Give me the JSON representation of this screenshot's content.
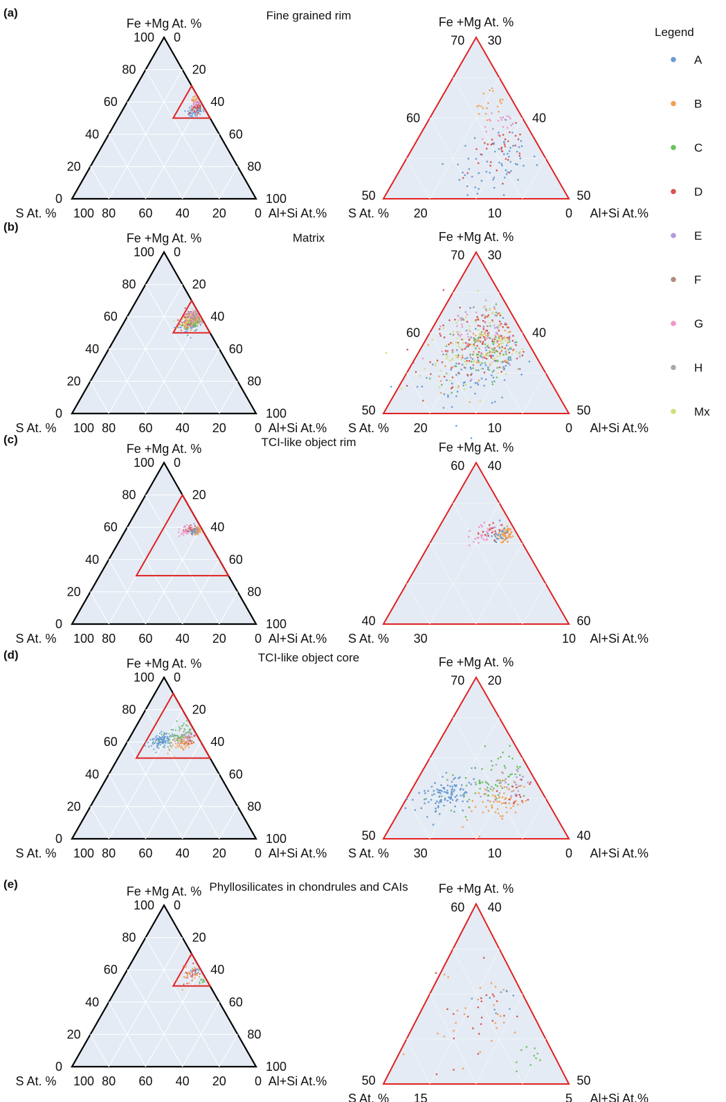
{
  "colors": {
    "A": "#6a9bd1",
    "B": "#f2a055",
    "C": "#6dbf63",
    "D": "#d9534f",
    "E": "#b39bd6",
    "F": "#b08c7e",
    "G": "#f096c8",
    "H": "#a9a9a9",
    "Mx": "#d4de7a",
    "zoom_frame": "#e02020",
    "background": "#e4ebf4"
  },
  "legend": {
    "title": "Legend",
    "items": [
      {
        "key": "A",
        "label": "A"
      },
      {
        "key": "B",
        "label": "B"
      },
      {
        "key": "C",
        "label": "C"
      },
      {
        "key": "D",
        "label": "D"
      },
      {
        "key": "E",
        "label": "E"
      },
      {
        "key": "F",
        "label": "F"
      },
      {
        "key": "G",
        "label": "G"
      },
      {
        "key": "H",
        "label": "H"
      },
      {
        "key": "Mx",
        "label": "Mx"
      }
    ]
  },
  "chart_data": [
    {
      "type": "scatter",
      "subtype": "ternary",
      "panel": "(a)",
      "title": "Fine grained rim",
      "axes": {
        "top": "Fe +Mg At. %",
        "left": "S At. %",
        "right": "Al+Si At.%"
      },
      "ticks": {
        "full": [
          "0",
          "20",
          "40",
          "60",
          "80",
          "100"
        ],
        "zoom_left": [
          "70",
          "60",
          "50"
        ],
        "zoom_right": [
          "30",
          "40",
          "50"
        ],
        "zoom_bottom": [
          "20",
          "10",
          "0"
        ]
      },
      "zoom_region": {
        "top_min": 50,
        "top_max": 70,
        "right_min": 30,
        "right_max": 50,
        "left_max": 20
      },
      "clusters": [
        {
          "series": "A",
          "center": {
            "top": 55,
            "right": 40
          },
          "spread": 2.2,
          "n": 70
        },
        {
          "series": "B",
          "center": {
            "top": 62,
            "right": 36
          },
          "spread": 1.3,
          "n": 35
        },
        {
          "series": "D",
          "center": {
            "top": 56,
            "right": 40
          },
          "spread": 1.8,
          "n": 40
        },
        {
          "series": "G",
          "center": {
            "top": 60,
            "right": 38
          },
          "spread": 1.2,
          "n": 18
        },
        {
          "series": "E",
          "center": {
            "top": 60,
            "right": 39
          },
          "spread": 1.2,
          "n": 12
        }
      ]
    },
    {
      "type": "scatter",
      "subtype": "ternary",
      "panel": "(b)",
      "title": "Matrix",
      "axes": {
        "top": "Fe +Mg At. %",
        "left": "S At. %",
        "right": "Al+Si At.%"
      },
      "ticks": {
        "full": [
          "0",
          "20",
          "40",
          "60",
          "80",
          "100"
        ],
        "zoom_left": [
          "70",
          "60",
          "50"
        ],
        "zoom_right": [
          "30",
          "40",
          "50"
        ],
        "zoom_bottom": [
          "20",
          "10",
          "0"
        ]
      },
      "zoom_region": {
        "top_min": 50,
        "top_max": 70,
        "right_min": 30,
        "right_max": 50,
        "left_max": 20
      },
      "clusters": [
        {
          "series": "A",
          "center": {
            "top": 56,
            "right": 38
          },
          "spread": 2.6,
          "n": 110
        },
        {
          "series": "D",
          "center": {
            "top": 59,
            "right": 36
          },
          "spread": 2.8,
          "n": 150
        },
        {
          "series": "Mx",
          "center": {
            "top": 59,
            "right": 37
          },
          "spread": 2.6,
          "n": 160
        },
        {
          "series": "C",
          "center": {
            "top": 58,
            "right": 37
          },
          "spread": 2.6,
          "n": 60
        },
        {
          "series": "B",
          "center": {
            "top": 59,
            "right": 38
          },
          "spread": 2.6,
          "n": 60
        },
        {
          "series": "G",
          "center": {
            "top": 60,
            "right": 35
          },
          "spread": 2.2,
          "n": 40
        },
        {
          "series": "E",
          "center": {
            "top": 59,
            "right": 37
          },
          "spread": 2.4,
          "n": 30
        },
        {
          "series": "F",
          "center": {
            "top": 60,
            "right": 36
          },
          "spread": 2.2,
          "n": 25
        }
      ]
    },
    {
      "type": "scatter",
      "subtype": "ternary",
      "panel": "(c)",
      "title": "TCI-like object rim",
      "axes": {
        "top": "Fe +Mg At. %",
        "left": "S At. %",
        "right": "Al+Si At.%"
      },
      "ticks": {
        "full": [
          "0",
          "20",
          "40",
          "60",
          "80",
          "100"
        ],
        "zoom_left": [
          "60",
          "40"
        ],
        "zoom_right": [
          "40",
          "60"
        ],
        "zoom_bottom": [
          "30",
          "10"
        ]
      },
      "zoom_region": {
        "top_min": 30,
        "top_max": 80,
        "right_min": 20,
        "right_max": 70,
        "left_max": 50
      },
      "clusters": [
        {
          "series": "B",
          "center": {
            "top": 58,
            "right": 39
          },
          "spread": 1.2,
          "n": 70
        },
        {
          "series": "A",
          "center": {
            "top": 58,
            "right": 37
          },
          "spread": 1.8,
          "n": 25
        },
        {
          "series": "G",
          "center": {
            "top": 58,
            "right": 33
          },
          "spread": 1.6,
          "n": 30
        },
        {
          "series": "D",
          "center": {
            "top": 59,
            "right": 35
          },
          "spread": 1.6,
          "n": 15
        }
      ]
    },
    {
      "type": "scatter",
      "subtype": "ternary",
      "panel": "(d)",
      "title": "TCI-like object core",
      "axes": {
        "top": "Fe +Mg At. %",
        "left": "S At. %",
        "right": "Al+Si At.%"
      },
      "ticks": {
        "full": [
          "0",
          "20",
          "40",
          "60",
          "80",
          "100"
        ],
        "zoom_left": [
          "70",
          "50"
        ],
        "zoom_right": [
          "20",
          "40"
        ],
        "zoom_bottom": [
          "30",
          "10",
          "0"
        ]
      },
      "zoom_region": {
        "top_min": 50,
        "top_max": 90,
        "right_min": 10,
        "right_max": 50,
        "left_max": 40
      },
      "clusters": [
        {
          "series": "A",
          "center": {
            "top": 61,
            "right": 18
          },
          "spread": 2.5,
          "n": 110
        },
        {
          "series": "B",
          "center": {
            "top": 60,
            "right": 30
          },
          "spread": 2.5,
          "n": 70
        },
        {
          "series": "C",
          "center": {
            "top": 65,
            "right": 26
          },
          "spread": 4.0,
          "n": 70
        },
        {
          "series": "E",
          "center": {
            "top": 64,
            "right": 30
          },
          "spread": 3.0,
          "n": 35
        },
        {
          "series": "D",
          "center": {
            "top": 61,
            "right": 34
          },
          "spread": 2.2,
          "n": 15
        }
      ]
    },
    {
      "type": "scatter",
      "subtype": "ternary",
      "panel": "(e)",
      "title": "Phyllosilicates in chondrules and CAIs",
      "axes": {
        "top": "Fe +Mg At. %",
        "left": "S At. %",
        "right": "Al+Si At.%"
      },
      "ticks": {
        "full": [
          "0",
          "20",
          "40",
          "60",
          "80",
          "100"
        ],
        "zoom_left": [
          "60",
          "50"
        ],
        "zoom_right": [
          "40",
          "50"
        ],
        "zoom_bottom": [
          "15",
          "5"
        ]
      },
      "zoom_region": {
        "top_min": 50,
        "top_max": 70,
        "right_min": 30,
        "right_max": 50,
        "left_max": 20
      },
      "clusters": [
        {
          "series": "D",
          "center": {
            "top": 59,
            "right": 37
          },
          "spread": 3.0,
          "n": 30
        },
        {
          "series": "B",
          "center": {
            "top": 58,
            "right": 36
          },
          "spread": 4.0,
          "n": 35
        },
        {
          "series": "A",
          "center": {
            "top": 60,
            "right": 38
          },
          "spread": 1.5,
          "n": 15
        },
        {
          "series": "C",
          "center": {
            "top": 53,
            "right": 44
          },
          "spread": 1.2,
          "n": 12
        }
      ]
    }
  ]
}
